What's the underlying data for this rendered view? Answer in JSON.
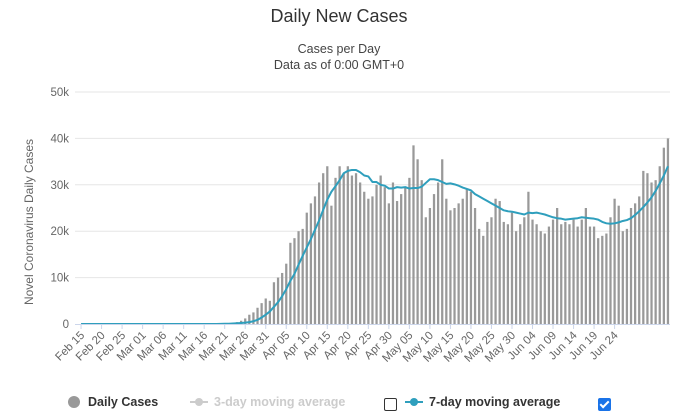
{
  "header": {
    "title": "Daily New Cases",
    "subtitle_1": "Cases per Day",
    "subtitle_2": "Data as of 0:00 GMT+0"
  },
  "legend": {
    "daily_cases": "Daily Cases",
    "three_day": "3-day moving average",
    "three_day_checked": false,
    "seven_day": "7-day moving average",
    "seven_day_checked": true
  },
  "colors": {
    "bars": "#999999",
    "seven_day_line": "#2f9fbd",
    "grid": "#e6e6e6"
  },
  "chart_data": {
    "type": "bar",
    "ylabel": "Novel Coronavirus Daily Cases",
    "xlabel": "",
    "ylim": [
      0,
      50000
    ],
    "yticks": [
      0,
      10000,
      20000,
      30000,
      40000,
      50000
    ],
    "ytick_labels": [
      "0",
      "10k",
      "20k",
      "30k",
      "40k",
      "50k"
    ],
    "grid": true,
    "legend_position": "bottom",
    "xtick_labels": [
      "Feb 15",
      "Feb 20",
      "Feb 25",
      "Mar 01",
      "Mar 06",
      "Mar 11",
      "Mar 16",
      "Mar 21",
      "Mar 26",
      "Mar 31",
      "Apr 05",
      "Apr 10",
      "Apr 15",
      "Apr 20",
      "Apr 25",
      "Apr 30",
      "May 05",
      "May 10",
      "May 15",
      "May 20",
      "May 25",
      "May 30",
      "Jun 04",
      "Jun 09",
      "Jun 14",
      "Jun 19",
      "Jun 24"
    ],
    "tick_every_days": 5,
    "start_date": "Feb 15",
    "series": [
      {
        "name": "Daily Cases",
        "values": [
          0,
          0,
          0,
          0,
          0,
          0,
          0,
          0,
          0,
          0,
          0,
          0,
          0,
          0,
          0,
          0,
          0,
          0,
          0,
          0,
          0,
          0,
          0,
          0,
          0,
          0,
          0,
          0,
          0,
          0,
          0,
          0,
          10,
          30,
          50,
          80,
          150,
          250,
          400,
          700,
          1200,
          2000,
          2500,
          3500,
          4500,
          5500,
          5000,
          9000,
          10000,
          11000,
          13000,
          17500,
          18500,
          20000,
          20500,
          24000,
          26000,
          27500,
          30500,
          32500,
          34000,
          25500,
          31500,
          34000,
          32500,
          34000,
          32000,
          32500,
          30500,
          28500,
          27000,
          27500,
          30000,
          32000,
          29500,
          26000,
          30500,
          26500,
          28000,
          29500,
          31500,
          38500,
          35500,
          31000,
          23000,
          25000,
          28000,
          30500,
          35500,
          27000,
          24500,
          25000,
          26000,
          27000,
          29000,
          28500,
          25000,
          20500,
          19000,
          22000,
          23000,
          27000,
          26500,
          22000,
          21500,
          24000,
          20000,
          21500,
          23000,
          28500,
          22500,
          21500,
          20000,
          19500,
          21000,
          22500,
          25000,
          21500,
          22000,
          21500,
          22500,
          21000,
          22500,
          25000,
          21000,
          21000,
          18500,
          19000,
          19500,
          23000,
          27000,
          25500,
          20000,
          20500,
          25000,
          26000,
          27500,
          33000,
          32500,
          30500,
          31000,
          34000,
          38000,
          40000
        ]
      },
      {
        "name": "7-day moving average",
        "values": [
          0,
          0,
          0,
          0,
          0,
          0,
          0,
          0,
          0,
          0,
          0,
          0,
          0,
          0,
          0,
          0,
          0,
          0,
          0,
          0,
          0,
          0,
          0,
          0,
          0,
          0,
          0,
          0,
          0,
          0,
          0,
          0,
          5,
          10,
          20,
          40,
          60,
          100,
          150,
          220,
          300,
          400,
          600,
          900,
          1400,
          2000,
          2700,
          3700,
          4700,
          6000,
          7500,
          9300,
          10800,
          12800,
          14700,
          16500,
          18300,
          20300,
          22300,
          24600,
          26800,
          28500,
          29700,
          31000,
          32500,
          33000,
          33200,
          33200,
          32700,
          32000,
          31800,
          30600,
          30600,
          30000,
          29800,
          29200,
          29200,
          29500,
          29400,
          29500,
          29200,
          29300,
          29300,
          29600,
          30400,
          31200,
          31200,
          31000,
          30600,
          30200,
          30300,
          30100,
          29800,
          29400,
          29100,
          28800,
          28000,
          27500,
          27000,
          26500,
          26000,
          25500,
          25000,
          24500,
          24300,
          24200,
          24000,
          23800,
          23600,
          24000,
          23900,
          24000,
          23800,
          23600,
          23300,
          23000,
          22800,
          22700,
          22500,
          22600,
          22700,
          22800,
          23000,
          22900,
          22800,
          22700,
          22500,
          22000,
          21700,
          21600,
          21700,
          21900,
          22200,
          22400,
          22800,
          23500,
          24300,
          25200,
          26200,
          27300,
          28700,
          30300,
          32000,
          34000
        ]
      }
    ]
  }
}
